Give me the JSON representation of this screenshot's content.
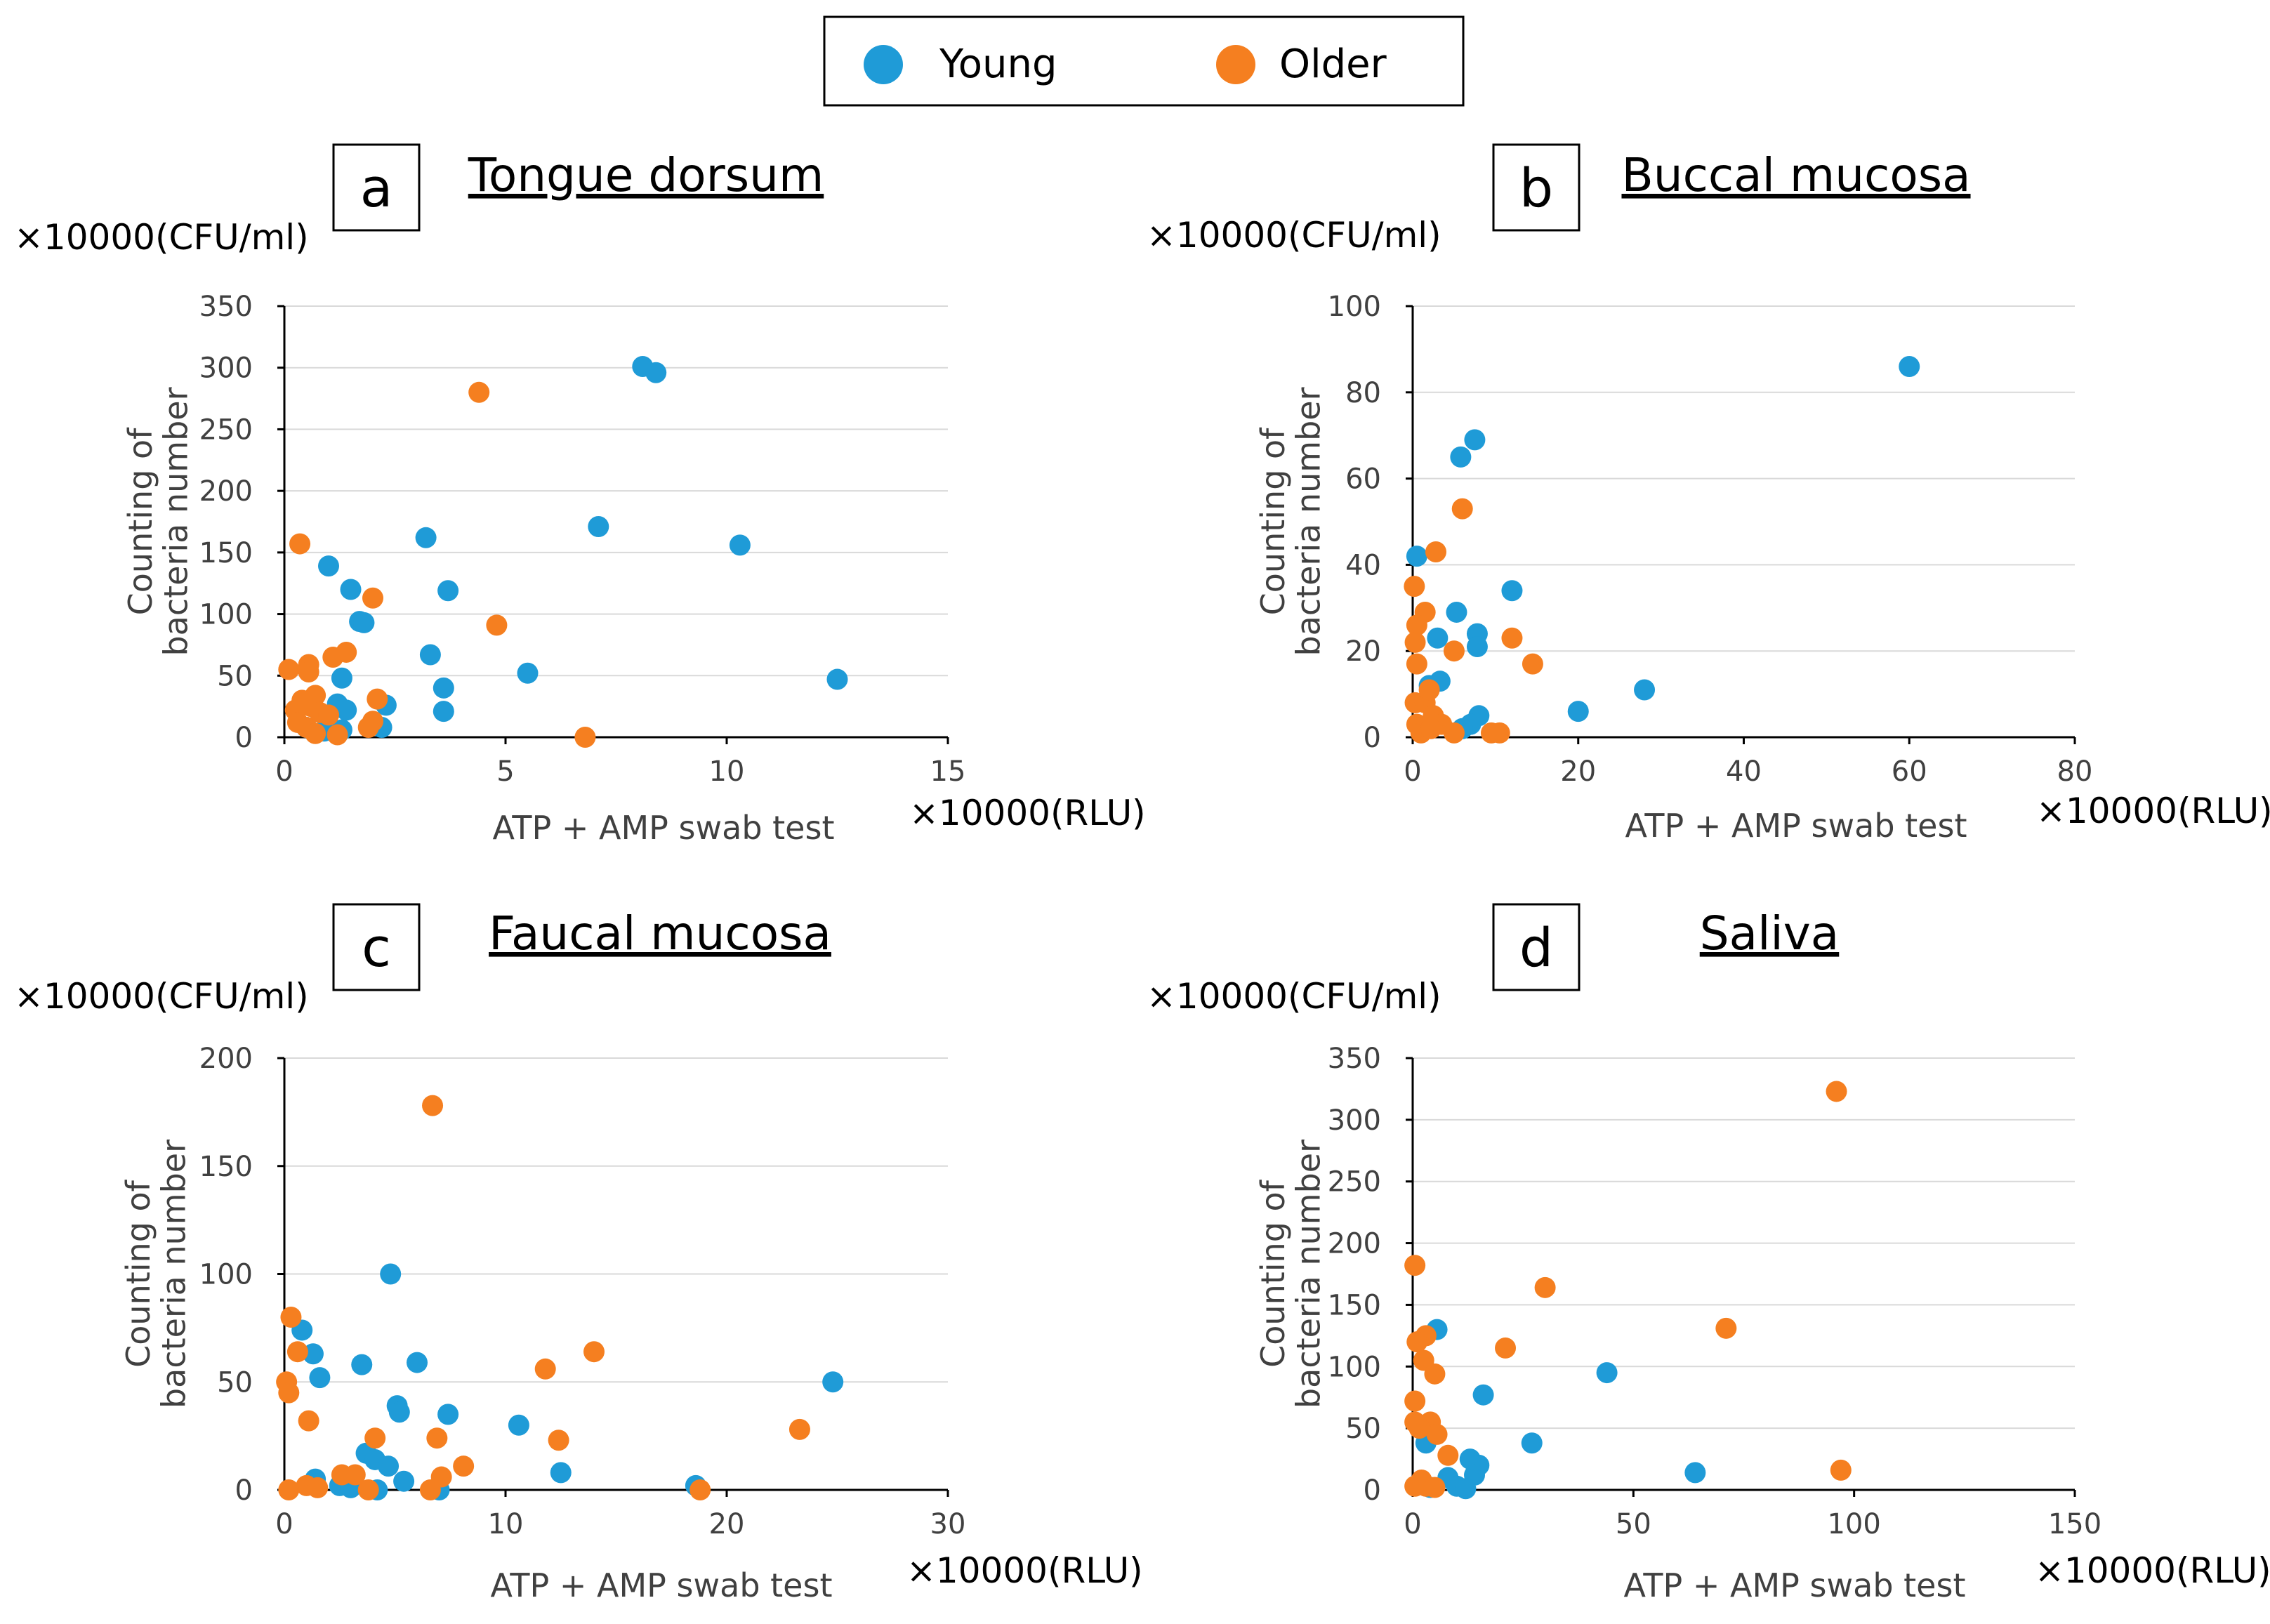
{
  "legend": {
    "series": [
      {
        "name": "Young",
        "color": "#1f9bd7"
      },
      {
        "name": "Older",
        "color": "#f57f20"
      }
    ]
  },
  "chart_data": [
    {
      "type": "scatter",
      "letter": "a",
      "title": "Tongue dorsum",
      "y_unit": "×10000(CFU/ml)",
      "x_unit": "×10000(RLU)",
      "xlabel": "ATP + AMP swab test",
      "ylabel": [
        "Counting of",
        "bacteria number"
      ],
      "xlim": [
        0,
        15
      ],
      "ylim": [
        0,
        350
      ],
      "xticks": [
        0,
        5,
        10,
        15
      ],
      "yticks": [
        0,
        50,
        100,
        150,
        200,
        250,
        300,
        350
      ],
      "series": [
        {
          "name": "Young",
          "points": [
            [
              8.1,
              301
            ],
            [
              8.4,
              296
            ],
            [
              7.1,
              171
            ],
            [
              10.3,
              156
            ],
            [
              3.2,
              162
            ],
            [
              1.0,
              139
            ],
            [
              1.5,
              120
            ],
            [
              3.7,
              119
            ],
            [
              1.7,
              94
            ],
            [
              1.8,
              93
            ],
            [
              3.3,
              67
            ],
            [
              5.5,
              52
            ],
            [
              12.5,
              47
            ],
            [
              1.3,
              48
            ],
            [
              3.6,
              40
            ],
            [
              3.6,
              21
            ],
            [
              2.3,
              26
            ],
            [
              1.2,
              27
            ],
            [
              1.4,
              22
            ],
            [
              2.2,
              8
            ],
            [
              1.3,
              6
            ],
            [
              0.9,
              5
            ],
            [
              0.5,
              8
            ]
          ]
        },
        {
          "name": "Older",
          "points": [
            [
              4.4,
              280
            ],
            [
              0.35,
              157
            ],
            [
              2.0,
              113
            ],
            [
              4.8,
              91
            ],
            [
              1.4,
              69
            ],
            [
              1.1,
              65
            ],
            [
              0.55,
              59
            ],
            [
              0.55,
              53
            ],
            [
              0.1,
              55
            ],
            [
              0.7,
              34
            ],
            [
              2.1,
              31
            ],
            [
              0.4,
              30
            ],
            [
              0.25,
              22
            ],
            [
              0.6,
              25
            ],
            [
              0.8,
              20
            ],
            [
              1.0,
              18
            ],
            [
              0.3,
              12
            ],
            [
              0.5,
              8
            ],
            [
              0.7,
              3
            ],
            [
              1.2,
              2
            ],
            [
              2.0,
              13
            ],
            [
              1.9,
              8
            ],
            [
              6.8,
              0
            ]
          ]
        }
      ]
    },
    {
      "type": "scatter",
      "letter": "b",
      "title": "Buccal mucosa",
      "y_unit": "×10000(CFU/ml)",
      "x_unit": "×10000(RLU)",
      "xlabel": "ATP + AMP swab test",
      "ylabel": [
        "Counting of",
        "bacteria number"
      ],
      "xlim": [
        0,
        80
      ],
      "ylim": [
        0,
        100
      ],
      "xticks": [
        0,
        20,
        40,
        60,
        80
      ],
      "yticks": [
        0,
        20,
        40,
        60,
        80,
        100
      ],
      "series": [
        {
          "name": "Young",
          "points": [
            [
              60,
              86
            ],
            [
              7.5,
              69
            ],
            [
              5.8,
              65
            ],
            [
              0.5,
              42
            ],
            [
              12,
              34
            ],
            [
              5.3,
              29
            ],
            [
              3.0,
              23
            ],
            [
              7.8,
              24
            ],
            [
              7.8,
              21
            ],
            [
              2.0,
              12
            ],
            [
              3.3,
              13
            ],
            [
              28,
              11
            ],
            [
              20,
              6
            ],
            [
              8,
              5
            ],
            [
              7,
              3
            ],
            [
              6,
              2
            ]
          ]
        },
        {
          "name": "Older",
          "points": [
            [
              6,
              53
            ],
            [
              2.8,
              43
            ],
            [
              0.2,
              35
            ],
            [
              1.5,
              29
            ],
            [
              0.5,
              26
            ],
            [
              0.3,
              22
            ],
            [
              12,
              23
            ],
            [
              5,
              20
            ],
            [
              14.5,
              17
            ],
            [
              0.5,
              17
            ],
            [
              0.3,
              8
            ],
            [
              1.5,
              8
            ],
            [
              2,
              11
            ],
            [
              2.5,
              5
            ],
            [
              3.5,
              3
            ],
            [
              0.5,
              3
            ],
            [
              1,
              1
            ],
            [
              5,
              1
            ],
            [
              9.5,
              1
            ],
            [
              10.5,
              1
            ],
            [
              2.2,
              2
            ]
          ]
        }
      ]
    },
    {
      "type": "scatter",
      "letter": "c",
      "title": "Faucal mucosa",
      "y_unit": "×10000(CFU/ml)",
      "x_unit": "×10000(RLU)",
      "xlabel": "ATP + AMP swab test",
      "ylabel": [
        "Counting of",
        "bacteria number"
      ],
      "xlim": [
        0,
        30
      ],
      "ylim": [
        0,
        200
      ],
      "xticks": [
        0,
        10,
        20,
        30
      ],
      "yticks": [
        0,
        50,
        100,
        150,
        200
      ],
      "series": [
        {
          "name": "Young",
          "points": [
            [
              4.8,
              100
            ],
            [
              0.8,
              74
            ],
            [
              1.3,
              63
            ],
            [
              6.0,
              59
            ],
            [
              3.5,
              58
            ],
            [
              1.6,
              52
            ],
            [
              24.8,
              50
            ],
            [
              5.1,
              39
            ],
            [
              5.2,
              36
            ],
            [
              7.4,
              35
            ],
            [
              10.6,
              30
            ],
            [
              3.7,
              17
            ],
            [
              4.1,
              14
            ],
            [
              4.7,
              11
            ],
            [
              12.5,
              8
            ],
            [
              5.4,
              4
            ],
            [
              1.4,
              5
            ],
            [
              2.5,
              2
            ],
            [
              3.0,
              1
            ],
            [
              4.2,
              0
            ],
            [
              7.0,
              0
            ],
            [
              18.6,
              2
            ]
          ]
        },
        {
          "name": "Older",
          "points": [
            [
              6.7,
              178
            ],
            [
              0.3,
              80
            ],
            [
              0.6,
              64
            ],
            [
              14.0,
              64
            ],
            [
              11.8,
              56
            ],
            [
              0.1,
              50
            ],
            [
              0.2,
              45
            ],
            [
              1.1,
              32
            ],
            [
              23.3,
              28
            ],
            [
              4.1,
              24
            ],
            [
              6.9,
              24
            ],
            [
              12.4,
              23
            ],
            [
              8.1,
              11
            ],
            [
              3.2,
              7
            ],
            [
              2.6,
              7
            ],
            [
              7.1,
              6
            ],
            [
              1.0,
              2
            ],
            [
              1.5,
              1
            ],
            [
              0.2,
              0
            ],
            [
              3.8,
              0
            ],
            [
              6.6,
              0
            ],
            [
              18.8,
              0
            ]
          ]
        }
      ]
    },
    {
      "type": "scatter",
      "letter": "d",
      "title": "Saliva",
      "y_unit": "×10000(CFU/ml)",
      "x_unit": "×10000(RLU)",
      "xlabel": "ATP + AMP swab test",
      "ylabel": [
        "Counting of",
        "bacteria number"
      ],
      "xlim": [
        0,
        150
      ],
      "ylim": [
        0,
        350
      ],
      "xticks": [
        0,
        50,
        100,
        150
      ],
      "yticks": [
        0,
        50,
        100,
        150,
        200,
        250,
        300,
        350
      ],
      "series": [
        {
          "name": "Young",
          "points": [
            [
              44,
              95
            ],
            [
              16,
              77
            ],
            [
              5.5,
              130
            ],
            [
              27,
              38
            ],
            [
              64,
              14
            ],
            [
              13,
              25
            ],
            [
              15,
              20
            ],
            [
              14,
              12
            ],
            [
              8,
              10
            ],
            [
              10,
              3
            ],
            [
              12,
              1
            ],
            [
              3,
              38
            ],
            [
              4,
              2
            ]
          ]
        },
        {
          "name": "Older",
          "points": [
            [
              96,
              323
            ],
            [
              0.5,
              182
            ],
            [
              30,
              164
            ],
            [
              71,
              131
            ],
            [
              3,
              125
            ],
            [
              1,
              120
            ],
            [
              2.5,
              105
            ],
            [
              5,
              94
            ],
            [
              21,
              115
            ],
            [
              0.5,
              72
            ],
            [
              4,
              55
            ],
            [
              5.5,
              45
            ],
            [
              1.5,
              50
            ],
            [
              0.5,
              55
            ],
            [
              8,
              28
            ],
            [
              97,
              16
            ],
            [
              2,
              8
            ],
            [
              3,
              3
            ],
            [
              5,
              2
            ],
            [
              0.5,
              3
            ]
          ]
        }
      ]
    }
  ]
}
